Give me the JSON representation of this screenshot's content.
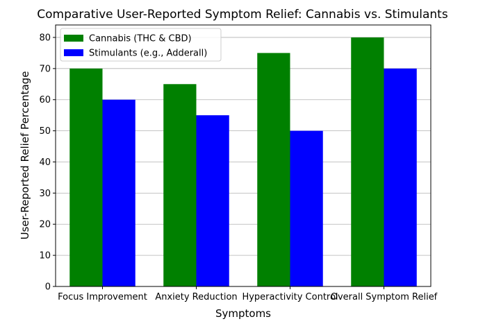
{
  "chart_data": {
    "type": "bar",
    "title": "Comparative User-Reported Symptom Relief: Cannabis vs. Stimulants",
    "xlabel": "Symptoms",
    "ylabel": "User-Reported Relief Percentage",
    "categories": [
      "Focus Improvement",
      "Anxiety Reduction",
      "Hyperactivity Control",
      "Overall Symptom Relief"
    ],
    "series": [
      {
        "name": "Cannabis (THC & CBD)",
        "values": [
          70,
          65,
          75,
          80
        ],
        "color": "#008000"
      },
      {
        "name": "Stimulants (e.g., Adderall)",
        "values": [
          60,
          55,
          50,
          70
        ],
        "color": "#0000ff"
      }
    ],
    "ylim": [
      0,
      84
    ],
    "yticks": [
      0,
      10,
      20,
      30,
      40,
      50,
      60,
      70,
      80
    ],
    "grid": "horizontal",
    "legend_position": "top-left"
  }
}
